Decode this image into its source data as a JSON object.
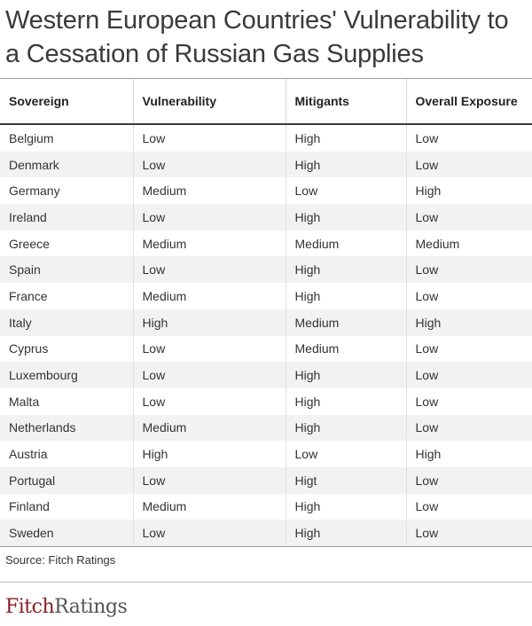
{
  "title": "Western European Countries' Vulnerability to a Cessation of Russian Gas Supplies",
  "table": {
    "headers": [
      "Sovereign",
      "Vulnerability",
      "Mitigants",
      "Overall Exposure"
    ],
    "rows": [
      [
        "Belgium",
        "Low",
        "High",
        "Low"
      ],
      [
        "Denmark",
        "Low",
        "High",
        "Low"
      ],
      [
        "Germany",
        "Medium",
        "Low",
        "High"
      ],
      [
        "Ireland",
        "Low",
        "High",
        "Low"
      ],
      [
        "Greece",
        "Medium",
        "Medium",
        "Medium"
      ],
      [
        "Spain",
        "Low",
        "High",
        "Low"
      ],
      [
        "France",
        "Medium",
        "High",
        "Low"
      ],
      [
        "Italy",
        "High",
        "Medium",
        "High"
      ],
      [
        "Cyprus",
        "Low",
        "Medium",
        "Low"
      ],
      [
        "Luxembourg",
        "Low",
        "High",
        "Low"
      ],
      [
        "Malta",
        "Low",
        "High",
        "Low"
      ],
      [
        "Netherlands",
        "Medium",
        "High",
        "Low"
      ],
      [
        "Austria",
        "High",
        "Low",
        "High"
      ],
      [
        "Portugal",
        "Low",
        "Higt",
        "Low"
      ],
      [
        "Finland",
        "Medium",
        "High",
        "Low"
      ],
      [
        "Sweden",
        "Low",
        "High",
        "Low"
      ]
    ]
  },
  "source": "Source: Fitch Ratings",
  "logo": {
    "part1": "Fitch",
    "part2": "Ratings",
    "brand_color": "#8b1c2b"
  }
}
